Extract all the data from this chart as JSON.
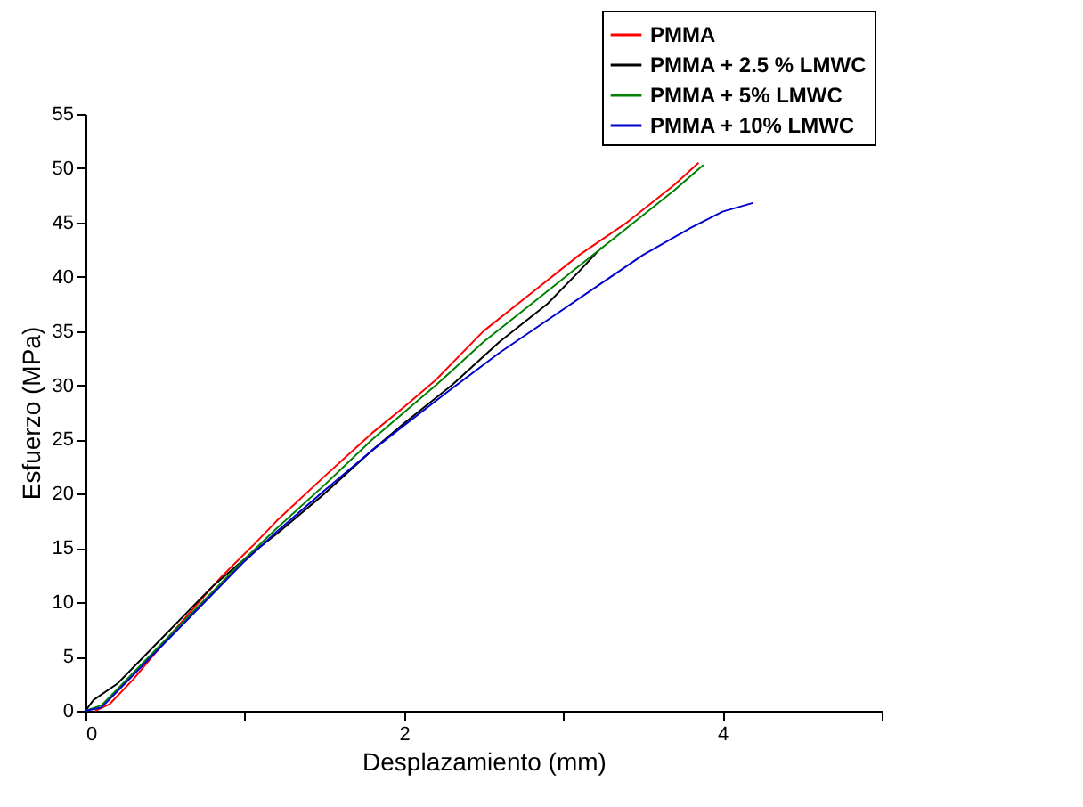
{
  "chart_data": {
    "type": "line",
    "xlabel": "Desplazamiento (mm)",
    "ylabel": "Esfuerzo (MPa)",
    "xlim": [
      0,
      5
    ],
    "xticks": [
      0,
      {
        "value": 1,
        "label": null
      },
      2,
      {
        "value": 3,
        "label": null
      },
      4,
      {
        "value": 5,
        "label": null
      }
    ],
    "ylim": [
      0,
      55
    ],
    "yticks": [
      0,
      5,
      10,
      15,
      20,
      25,
      30,
      35,
      40,
      45,
      50,
      55
    ],
    "grid": false,
    "legend": "top right",
    "line_style": "solid",
    "marker": "none",
    "series": [
      {
        "name": "PMMA",
        "color": "#ff0000",
        "x": [
          0.06,
          0.15,
          0.3,
          0.55,
          0.85,
          1.05,
          1.2,
          1.5,
          1.8,
          2.0,
          2.2,
          2.5,
          2.8,
          3.1,
          3.4,
          3.7,
          3.85
        ],
        "values": [
          0,
          0.6,
          2.9,
          7.3,
          12.3,
          15.2,
          17.5,
          21.6,
          25.6,
          28,
          30.5,
          35,
          38.5,
          42,
          45,
          48.5,
          50.5
        ]
      },
      {
        "name": "PMMA + 2.5 % LMWC",
        "color": "#000000",
        "x": [
          0,
          0.05,
          0.2,
          0.5,
          0.8,
          1.0,
          1.2,
          1.5,
          1.8,
          2.0,
          2.3,
          2.6,
          2.9,
          3.1,
          3.24
        ],
        "values": [
          0,
          1,
          2.5,
          7,
          11.5,
          14,
          16.3,
          20,
          24,
          26.5,
          30,
          34,
          37.5,
          40.5,
          42.7
        ]
      },
      {
        "name": "PMMA + 5% LMWC",
        "color": "#008000",
        "x": [
          0,
          0.1,
          0.2,
          0.5,
          0.8,
          1.0,
          1.2,
          1.5,
          1.8,
          2.0,
          2.2,
          2.5,
          2.8,
          3.1,
          3.4,
          3.7,
          3.88
        ],
        "values": [
          0,
          0.5,
          2,
          6.5,
          11,
          14,
          16.8,
          20.8,
          25,
          27.5,
          30,
          34,
          37.5,
          41,
          44.5,
          48,
          50.3
        ]
      },
      {
        "name": "PMMA + 10% LMWC",
        "color": "#0000cc",
        "x": [
          0,
          0.1,
          0.2,
          0.5,
          0.8,
          1.0,
          1.2,
          1.5,
          1.8,
          2.0,
          2.3,
          2.6,
          2.9,
          3.2,
          3.5,
          3.8,
          4.0,
          4.19
        ],
        "values": [
          0,
          0.3,
          1.8,
          6.3,
          10.8,
          13.8,
          16.5,
          20.3,
          24,
          26.3,
          29.7,
          33,
          36,
          39,
          42,
          44.5,
          46,
          46.8
        ]
      }
    ]
  }
}
